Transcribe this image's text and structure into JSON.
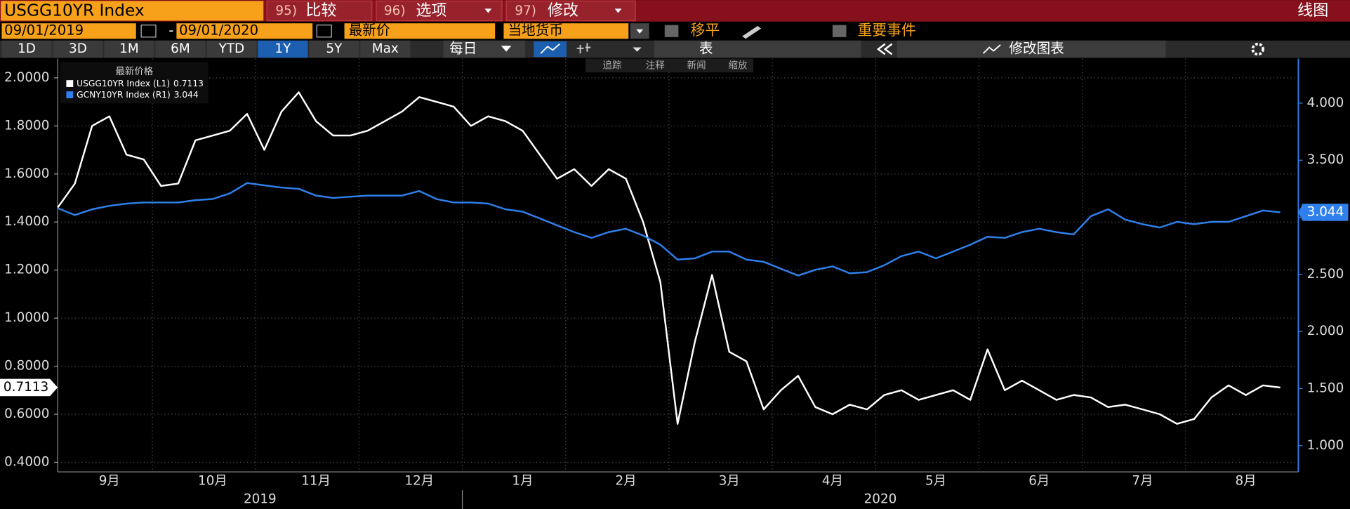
{
  "toolbar": {
    "ticker": "USGG10YR Index",
    "buttons": [
      {
        "num": "95)",
        "label": "比较"
      },
      {
        "num": "96)",
        "label": "选项"
      },
      {
        "num": "97)",
        "label": "修改"
      }
    ],
    "view": "线图",
    "start_date": "09/01/2019",
    "dash": "-",
    "end_date": "09/01/2020",
    "price_field": "最新价",
    "currency": "当地货币",
    "option_a": "移平",
    "option_b": "重要事件",
    "ranges": [
      {
        "label": "1D"
      },
      {
        "label": "3D"
      },
      {
        "label": "1M"
      },
      {
        "label": "6M"
      },
      {
        "label": "YTD"
      },
      {
        "label": "1Y",
        "active": true
      },
      {
        "label": "5Y"
      },
      {
        "label": "Max"
      }
    ],
    "frequency": "每日",
    "table": "表",
    "edit_chart": "修改图表"
  },
  "chart_tools": [
    "追踪",
    "注释",
    "新闻",
    "缩放"
  ],
  "chart_data": {
    "type": "line",
    "legend_title": "最新价格",
    "categories": [
      null,
      null,
      null,
      "9月",
      null,
      null,
      null,
      null,
      null,
      "10月",
      null,
      null,
      null,
      null,
      null,
      "11月",
      null,
      null,
      null,
      null,
      null,
      "12月",
      null,
      null,
      null,
      null,
      null,
      "1月",
      null,
      null,
      null,
      null,
      null,
      "2月",
      null,
      null,
      null,
      null,
      null,
      "3月",
      null,
      null,
      null,
      null,
      null,
      "4月",
      null,
      null,
      null,
      null,
      null,
      "5月",
      null,
      null,
      null,
      null,
      null,
      "6月",
      null,
      null,
      null,
      null,
      null,
      "7月",
      null,
      null,
      null,
      null,
      null,
      "8月",
      null,
      null
    ],
    "x_groups": [
      "2019",
      "2020"
    ],
    "series": [
      {
        "name": "USGG10YR Index (L1)",
        "color": "#ffffff",
        "axis": "y",
        "values": [
          1.46,
          1.56,
          1.8,
          1.84,
          1.68,
          1.66,
          1.55,
          1.56,
          1.74,
          1.76,
          1.78,
          1.85,
          1.7,
          1.86,
          1.94,
          1.82,
          1.76,
          1.76,
          1.78,
          1.82,
          1.86,
          1.92,
          1.9,
          1.88,
          1.8,
          1.84,
          1.82,
          1.78,
          1.68,
          1.58,
          1.62,
          1.55,
          1.62,
          1.58,
          1.4,
          1.15,
          0.56,
          0.9,
          1.18,
          0.86,
          0.82,
          0.62,
          0.7,
          0.76,
          0.63,
          0.6,
          0.64,
          0.62,
          0.68,
          0.7,
          0.66,
          0.68,
          0.7,
          0.66,
          0.87,
          0.7,
          0.74,
          0.7,
          0.66,
          0.68,
          0.67,
          0.63,
          0.64,
          0.62,
          0.6,
          0.56,
          0.58,
          0.67,
          0.72,
          0.68,
          0.72,
          0.7113
        ]
      },
      {
        "name": "GCNY10YR Index (R1)",
        "color": "#2f80ec",
        "axis": "y2",
        "values": [
          3.08,
          3.02,
          3.07,
          3.1,
          3.12,
          3.13,
          3.13,
          3.13,
          3.15,
          3.16,
          3.21,
          3.3,
          3.28,
          3.26,
          3.25,
          3.19,
          3.17,
          3.18,
          3.19,
          3.19,
          3.19,
          3.23,
          3.16,
          3.13,
          3.13,
          3.12,
          3.07,
          3.05,
          2.99,
          2.93,
          2.87,
          2.82,
          2.87,
          2.9,
          2.84,
          2.76,
          2.63,
          2.64,
          2.7,
          2.7,
          2.63,
          2.61,
          2.55,
          2.49,
          2.54,
          2.57,
          2.51,
          2.52,
          2.58,
          2.66,
          2.7,
          2.64,
          2.7,
          2.76,
          2.83,
          2.82,
          2.87,
          2.9,
          2.87,
          2.85,
          3.01,
          3.07,
          2.98,
          2.94,
          2.91,
          2.96,
          2.94,
          2.96,
          2.96,
          3.01,
          3.06,
          3.044
        ]
      }
    ],
    "ylim": [
      0.36,
      2.08
    ],
    "yticks": [
      {
        "value": 0.4,
        "label": "0.4000"
      },
      {
        "value": 0.6,
        "label": "0.6000"
      },
      {
        "value": 0.8,
        "label": "0.8000"
      },
      {
        "value": 1,
        "label": "1.0000"
      },
      {
        "value": 1.2,
        "label": "1.2000"
      },
      {
        "value": 1.4,
        "label": "1.4000"
      },
      {
        "value": 1.6,
        "label": "1.6000"
      },
      {
        "value": 1.8,
        "label": "1.8000"
      },
      {
        "value": 2,
        "label": "2.0000"
      }
    ],
    "y2lim": [
      0.77,
      4.39
    ],
    "y2ticks": [
      {
        "value": 1,
        "label": "1.000"
      },
      {
        "value": 1.5,
        "label": "1.500"
      },
      {
        "value": 2,
        "label": "2.000"
      },
      {
        "value": 2.5,
        "label": "2.500"
      },
      {
        "value": 3,
        "label": "3.000"
      },
      {
        "value": 3.5,
        "label": "3.500"
      },
      {
        "value": 4,
        "label": "4.000"
      }
    ],
    "grid": true
  }
}
